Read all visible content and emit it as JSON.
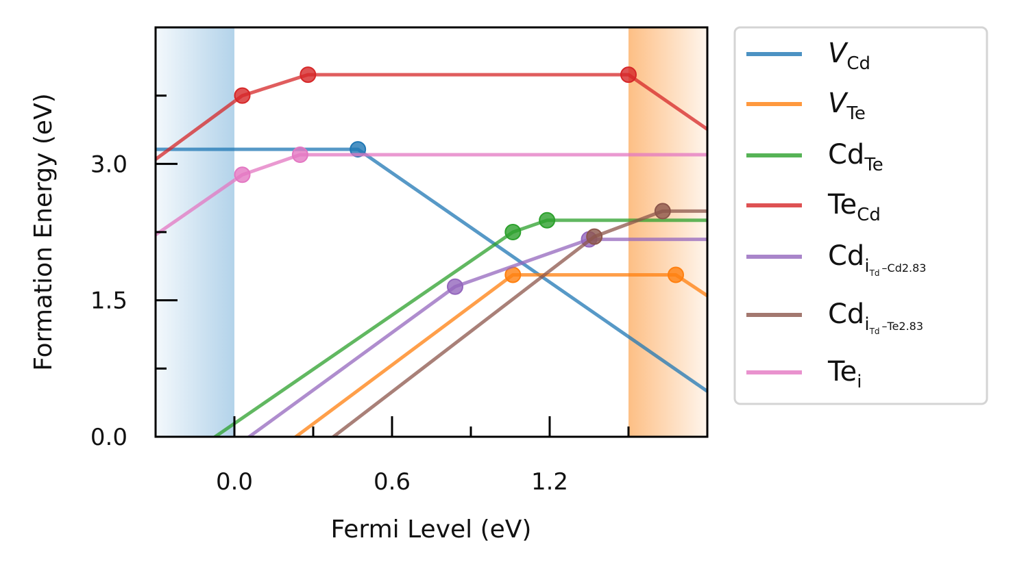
{
  "chart_data": {
    "type": "line",
    "title": "",
    "xlabel": "Fermi Level (eV)",
    "ylabel": "Formation Energy (eV)",
    "xlim": [
      -0.3,
      1.8
    ],
    "ylim": [
      0.0,
      4.5
    ],
    "xticks": [
      {
        "value": 0.0,
        "label": "0.0"
      },
      {
        "value": 0.6,
        "label": "0.6"
      },
      {
        "value": 1.2,
        "label": "1.2"
      }
    ],
    "yticks": [
      {
        "value": 0.0,
        "label": "0.0"
      },
      {
        "value": 1.5,
        "label": "1.5"
      },
      {
        "value": 3.0,
        "label": "3.0"
      }
    ],
    "xminor": [
      0.3,
      0.9,
      1.5
    ],
    "yminor": [
      0.75,
      2.25,
      3.75
    ],
    "valence_band_shading": {
      "from": -0.3,
      "to": 0.0,
      "color": "#b3d3ea"
    },
    "conduction_band_shading": {
      "from": 1.5,
      "to": 1.8,
      "color": "#fdbf85"
    },
    "grid": false,
    "legend_position": "outside-right",
    "series": [
      {
        "name": "V",
        "subscript": "Cd",
        "italic": true,
        "color": "#1f77b4",
        "points": [
          [
            -0.3,
            3.16
          ],
          [
            0.47,
            3.16
          ],
          [
            1.8,
            0.5
          ]
        ],
        "markers": [
          [
            0.47,
            3.16
          ]
        ]
      },
      {
        "name": "V",
        "subscript": "Te",
        "italic": true,
        "color": "#ff7f0e",
        "points": [
          [
            -0.3,
            -1.15
          ],
          [
            1.06,
            1.78
          ],
          [
            1.68,
            1.78
          ],
          [
            1.8,
            1.55
          ]
        ],
        "markers": [
          [
            1.06,
            1.78
          ],
          [
            1.68,
            1.78
          ]
        ]
      },
      {
        "name": "Cd",
        "subscript": "Te",
        "italic": false,
        "color": "#2ca02c",
        "points": [
          [
            -0.3,
            -0.45
          ],
          [
            1.06,
            2.25
          ],
          [
            1.19,
            2.38
          ],
          [
            1.8,
            2.38
          ]
        ],
        "markers": [
          [
            1.06,
            2.25
          ],
          [
            1.19,
            2.38
          ]
        ]
      },
      {
        "name": "Te",
        "subscript": "Cd",
        "italic": false,
        "color": "#d62728",
        "points": [
          [
            -0.3,
            3.05
          ],
          [
            0.03,
            3.75
          ],
          [
            0.28,
            3.98
          ],
          [
            1.5,
            3.98
          ],
          [
            1.8,
            3.38
          ]
        ],
        "markers": [
          [
            0.03,
            3.75
          ],
          [
            0.28,
            3.98
          ],
          [
            1.5,
            3.98
          ]
        ]
      },
      {
        "name": "Cd",
        "subscript": "i",
        "subsub": "Td",
        "subtail": "–Cd2.83",
        "italic": false,
        "color": "#9467bd",
        "points": [
          [
            -0.3,
            -0.75
          ],
          [
            0.84,
            1.65
          ],
          [
            1.35,
            2.17
          ],
          [
            1.8,
            2.17
          ]
        ],
        "markers": [
          [
            0.84,
            1.65
          ],
          [
            1.35,
            2.17
          ]
        ]
      },
      {
        "name": "Cd",
        "subscript": "i",
        "subsub": "Td",
        "subtail": "–Te2.83",
        "italic": false,
        "color": "#8c564b",
        "points": [
          [
            -0.3,
            -1.5
          ],
          [
            1.37,
            2.2
          ],
          [
            1.63,
            2.48
          ],
          [
            1.8,
            2.48
          ]
        ],
        "markers": [
          [
            1.37,
            2.2
          ],
          [
            1.63,
            2.48
          ]
        ]
      },
      {
        "name": "Te",
        "subscript": "i",
        "italic": false,
        "color": "#e377c2",
        "points": [
          [
            -0.3,
            2.22
          ],
          [
            0.03,
            2.88
          ],
          [
            0.25,
            3.1
          ],
          [
            1.8,
            3.1
          ]
        ],
        "markers": [
          [
            0.03,
            2.88
          ],
          [
            0.25,
            3.1
          ]
        ]
      }
    ]
  }
}
